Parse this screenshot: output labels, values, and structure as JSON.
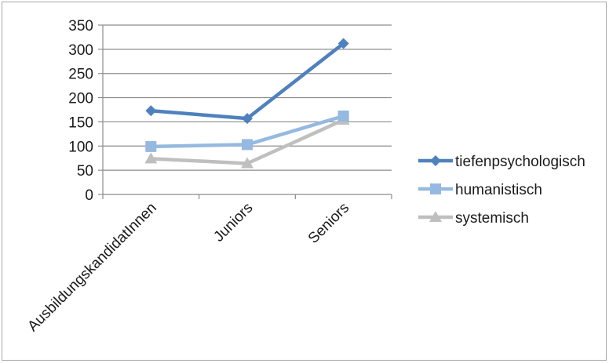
{
  "chart_data": {
    "type": "line",
    "categories": [
      "AusbildungskandidatInnen",
      "Juniors",
      "Seniors"
    ],
    "ylim": [
      0,
      350
    ],
    "yticks": [
      0,
      50,
      100,
      150,
      200,
      250,
      300,
      350
    ],
    "grid": true,
    "legend_position": "right",
    "series": [
      {
        "name": "tiefenpsychologisch",
        "values": [
          173,
          157,
          312
        ],
        "color": "#4f81bd",
        "marker": "diamond"
      },
      {
        "name": "humanistisch",
        "values": [
          99,
          103,
          162
        ],
        "color": "#95b9e0",
        "marker": "square"
      },
      {
        "name": "systemisch",
        "values": [
          74,
          64,
          154
        ],
        "color": "#bfbfbf",
        "marker": "triangle"
      }
    ]
  }
}
